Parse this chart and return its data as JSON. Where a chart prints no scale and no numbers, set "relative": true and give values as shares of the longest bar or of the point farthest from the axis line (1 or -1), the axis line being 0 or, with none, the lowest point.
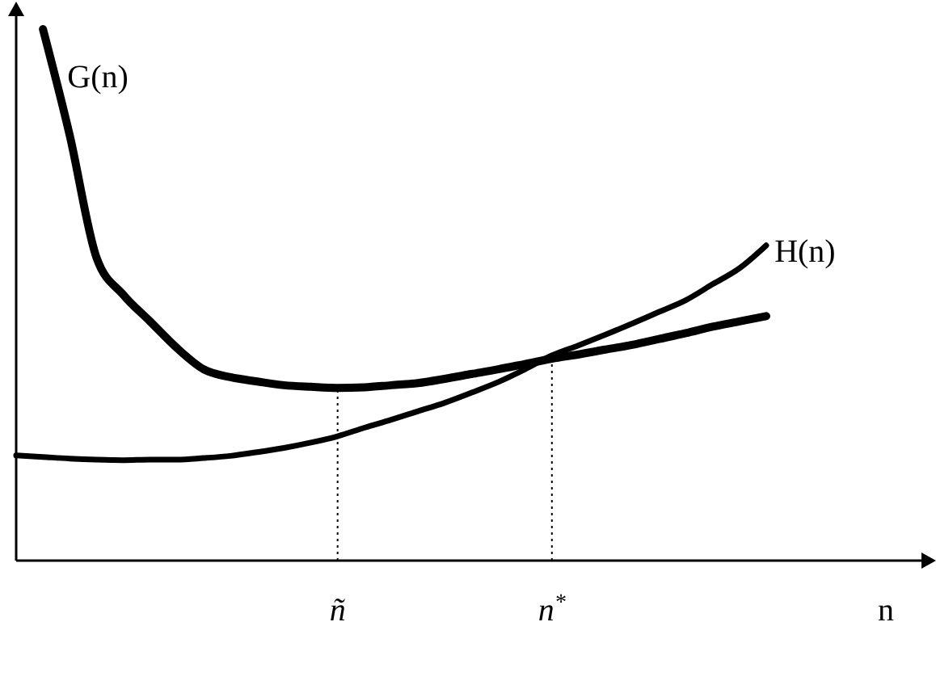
{
  "chart_data": {
    "type": "line",
    "relative": true,
    "xlabel": "n",
    "categories": [
      null,
      null,
      null,
      null,
      null,
      null,
      null,
      null,
      null,
      null,
      null,
      null,
      "ñ",
      null,
      null,
      null,
      null,
      null,
      null,
      null,
      "n$^{*}$",
      null,
      null,
      null,
      null,
      null,
      null,
      null,
      null
    ],
    "series": [
      {
        "name": "G(n)",
        "color": "#000000",
        "values": [
          null,
          1.0,
          0.8,
          0.57,
          0.5,
          0.45,
          0.4,
          0.36,
          0.345,
          0.337,
          0.33,
          0.327,
          0.325,
          0.326,
          0.33,
          0.334,
          0.342,
          0.351,
          0.36,
          0.37,
          0.38,
          0.388,
          0.397,
          0.406,
          0.417,
          0.428,
          0.44,
          0.45,
          0.46
        ]
      },
      {
        "name": "H(n)",
        "color": "#000000",
        "values": [
          0.198,
          0.195,
          0.192,
          0.19,
          0.189,
          0.19,
          0.19,
          0.193,
          0.197,
          0.204,
          0.212,
          0.222,
          0.234,
          0.25,
          0.265,
          0.281,
          0.297,
          0.316,
          0.336,
          0.36,
          0.386,
          0.405,
          0.425,
          0.446,
          0.468,
          0.49,
          0.52,
          0.55,
          0.593
        ]
      }
    ],
    "ref_lines": [
      {
        "axis": "x",
        "value": "ñ",
        "line_style": "dotted"
      },
      {
        "axis": "x",
        "value": "n$^{*}$",
        "line_style": "dotted"
      }
    ]
  }
}
